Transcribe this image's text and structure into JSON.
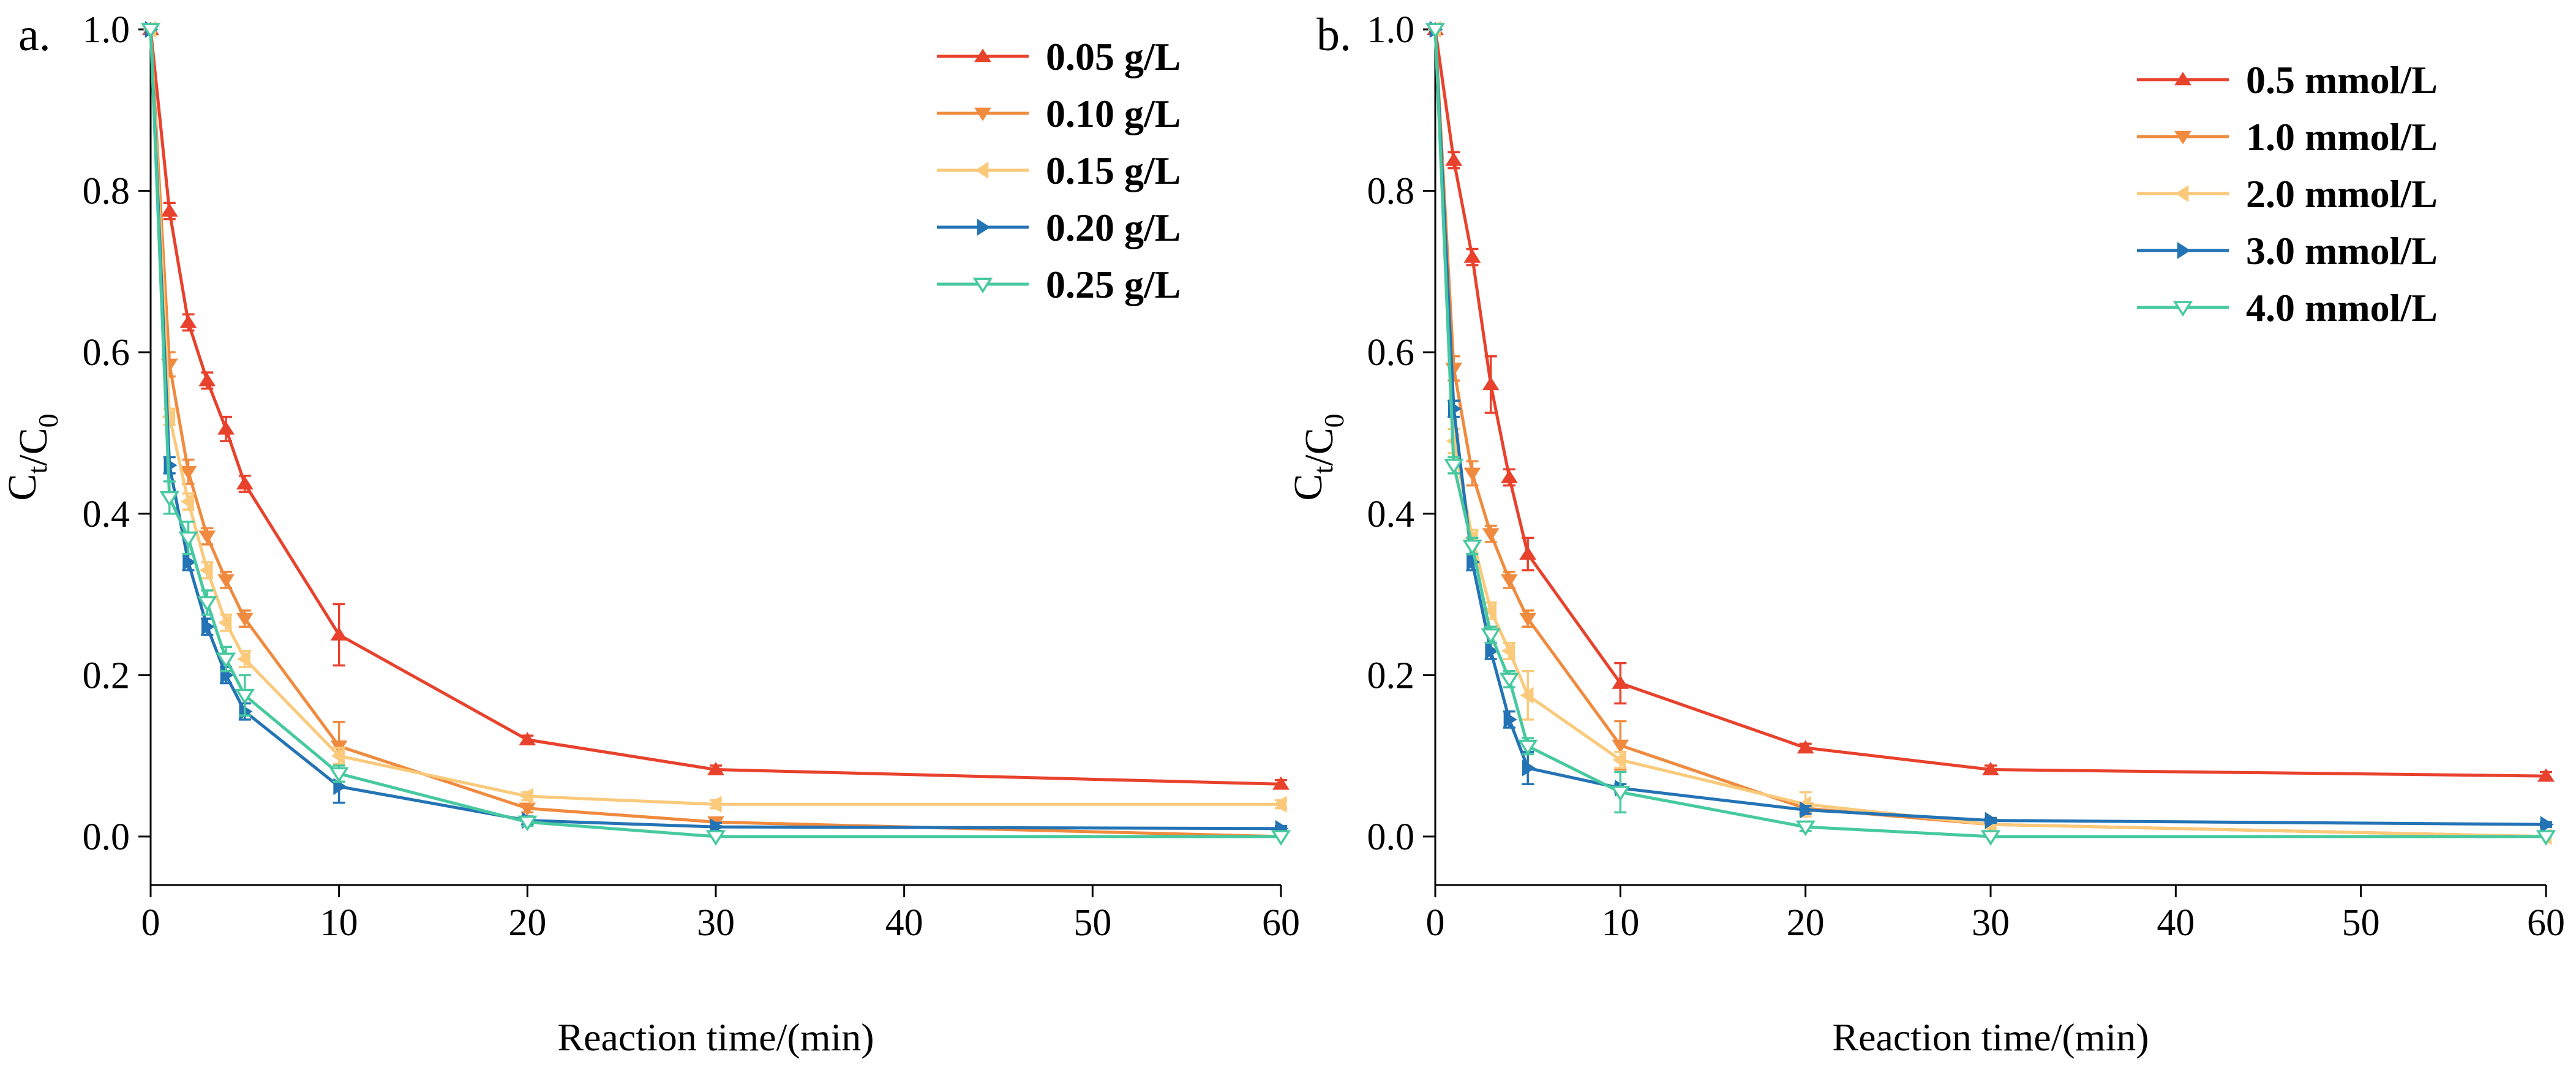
{
  "chart_data": [
    {
      "type": "line",
      "panel_label": "a.",
      "xlabel": "Reaction time/(min)",
      "ylabel": "C_t/C_0",
      "xlim": [
        0,
        60
      ],
      "ylim": [
        0,
        1.0
      ],
      "xticks": [
        0,
        10,
        20,
        30,
        40,
        50,
        60
      ],
      "yticks": [
        0.0,
        0.2,
        0.4,
        0.6,
        0.8,
        1.0
      ],
      "grid": false,
      "legend_position": "top-right",
      "x": [
        0,
        1,
        2,
        3,
        4,
        5,
        10,
        20,
        30,
        60
      ],
      "series": [
        {
          "name": "0.05 g/L",
          "color": "#e8412c",
          "marker": "triangle-up",
          "values": [
            1.0,
            0.775,
            0.637,
            0.565,
            0.505,
            0.437,
            0.25,
            0.12,
            0.083,
            0.065
          ],
          "errors": [
            0,
            0.01,
            0.01,
            0.01,
            0.015,
            0.01,
            0.038,
            0.005,
            0.005,
            0.005
          ]
        },
        {
          "name": "0.10 g/L",
          "color": "#f08a3e",
          "marker": "triangle-down",
          "values": [
            1.0,
            0.585,
            0.452,
            0.372,
            0.318,
            0.27,
            0.112,
            0.035,
            0.018,
            0.0
          ],
          "errors": [
            0,
            0.015,
            0.015,
            0.01,
            0.01,
            0.01,
            0.03,
            0.005,
            0.005,
            0
          ]
        },
        {
          "name": "0.15 g/L",
          "color": "#fac97a",
          "marker": "triangle-left",
          "values": [
            1.0,
            0.52,
            0.415,
            0.33,
            0.265,
            0.22,
            0.1,
            0.05,
            0.04,
            0.04
          ],
          "errors": [
            0,
            0.01,
            0.01,
            0.01,
            0.01,
            0.01,
            0.01,
            0.005,
            0.005,
            0.005
          ]
        },
        {
          "name": "0.20 g/L",
          "color": "#2373b5",
          "marker": "triangle-right",
          "values": [
            1.0,
            0.46,
            0.34,
            0.26,
            0.2,
            0.155,
            0.062,
            0.02,
            0.012,
            0.01
          ],
          "errors": [
            0,
            0.01,
            0.01,
            0.01,
            0.01,
            0.01,
            0.02,
            0.005,
            0.005,
            0.003
          ]
        },
        {
          "name": "0.25 g/L",
          "color": "#47c9a0",
          "marker": "triangle-down-open",
          "values": [
            1.0,
            0.42,
            0.37,
            0.29,
            0.22,
            0.175,
            0.078,
            0.018,
            0.0,
            0.0
          ],
          "errors": [
            0,
            0.02,
            0.02,
            0.015,
            0.015,
            0.025,
            0.01,
            0.005,
            0,
            0
          ]
        }
      ]
    },
    {
      "type": "line",
      "panel_label": "b.",
      "xlabel": "Reaction time/(min)",
      "ylabel": "C_t/C_0",
      "xlim": [
        0,
        60
      ],
      "ylim": [
        0,
        1.0
      ],
      "xticks": [
        0,
        10,
        20,
        30,
        40,
        50,
        60
      ],
      "yticks": [
        0.0,
        0.2,
        0.4,
        0.6,
        0.8,
        1.0
      ],
      "grid": false,
      "legend_position": "top-right",
      "x": [
        0,
        1,
        2,
        3,
        4,
        5,
        10,
        20,
        30,
        60
      ],
      "series": [
        {
          "name": "0.5 mmol/L",
          "color": "#e8412c",
          "marker": "triangle-up",
          "values": [
            1.0,
            0.838,
            0.718,
            0.56,
            0.445,
            0.35,
            0.19,
            0.11,
            0.083,
            0.075
          ],
          "errors": [
            0,
            0.01,
            0.01,
            0.035,
            0.01,
            0.02,
            0.025,
            0.005,
            0.005,
            0.005
          ]
        },
        {
          "name": "1.0 mmol/L",
          "color": "#f08a3e",
          "marker": "triangle-down",
          "values": [
            1.0,
            0.58,
            0.45,
            0.375,
            0.318,
            0.27,
            0.113,
            0.035,
            0.015,
            0.0
          ],
          "errors": [
            0,
            0.015,
            0.015,
            0.01,
            0.01,
            0.01,
            0.03,
            0.005,
            0.005,
            0
          ]
        },
        {
          "name": "2.0 mmol/L",
          "color": "#fac97a",
          "marker": "triangle-left",
          "values": [
            1.0,
            0.49,
            0.37,
            0.28,
            0.23,
            0.175,
            0.095,
            0.04,
            0.015,
            0.0
          ],
          "errors": [
            0,
            0.015,
            0.01,
            0.01,
            0.01,
            0.03,
            0.01,
            0.015,
            0.005,
            0
          ]
        },
        {
          "name": "3.0 mmol/L",
          "color": "#2373b5",
          "marker": "triangle-right",
          "values": [
            1.0,
            0.53,
            0.34,
            0.23,
            0.145,
            0.085,
            0.06,
            0.033,
            0.02,
            0.015
          ],
          "errors": [
            0,
            0.01,
            0.01,
            0.01,
            0.01,
            0.02,
            0.005,
            0.005,
            0.003,
            0.003
          ]
        },
        {
          "name": "4.0 mmol/L",
          "color": "#47c9a0",
          "marker": "triangle-down-open",
          "values": [
            1.0,
            0.46,
            0.36,
            0.25,
            0.195,
            0.112,
            0.055,
            0.012,
            0.0,
            0.0
          ],
          "errors": [
            0,
            0.01,
            0.01,
            0.01,
            0.01,
            0.01,
            0.025,
            0.005,
            0,
            0
          ]
        }
      ]
    }
  ]
}
